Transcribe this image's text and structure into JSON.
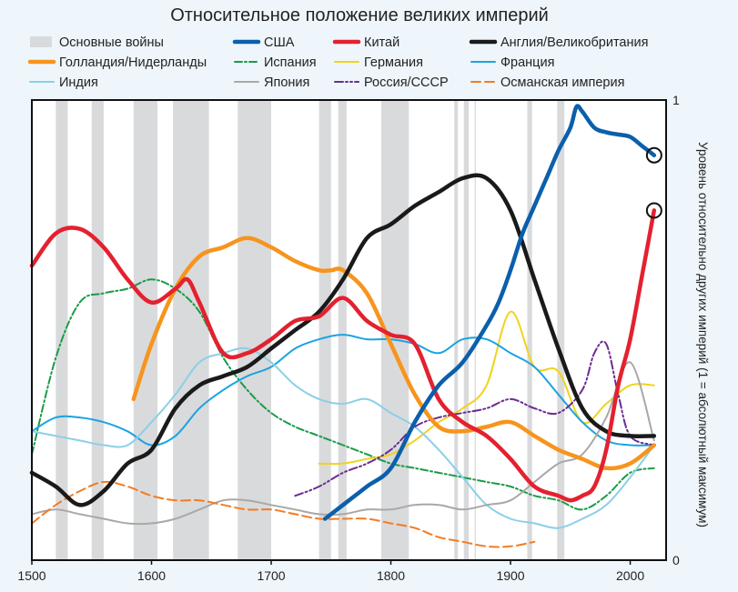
{
  "chart_data": {
    "type": "line",
    "title": "Относительное положение великих империй",
    "xlabel": "",
    "ylabel": "Уровень относительно других империй (1 = абсолютный максимум)",
    "xlim": [
      1500,
      2030
    ],
    "ylim": [
      0,
      1
    ],
    "x_ticks": [
      1500,
      1600,
      1700,
      1800,
      1900,
      2000
    ],
    "y_ticks": [
      0,
      1
    ],
    "legend": "top",
    "wars_label": "Основные войны",
    "wars_color": "#d9dadc",
    "major_wars": [
      [
        1520,
        1530
      ],
      [
        1550,
        1560
      ],
      [
        1585,
        1605
      ],
      [
        1618,
        1648
      ],
      [
        1672,
        1700
      ],
      [
        1740,
        1750
      ],
      [
        1756,
        1763
      ],
      [
        1792,
        1815
      ],
      [
        1853,
        1856
      ],
      [
        1861,
        1865
      ],
      [
        1870,
        1871
      ],
      [
        1914,
        1918
      ],
      [
        1939,
        1945
      ]
    ],
    "highlight_points": [
      {
        "series": "США",
        "x": 2020,
        "y": 0.88
      },
      {
        "series": "Китай",
        "x": 2020,
        "y": 0.76
      }
    ],
    "series": [
      {
        "name": "США",
        "color": "#0b5fab",
        "width": 4.5,
        "dash": "",
        "x": [
          1745,
          1760,
          1780,
          1800,
          1820,
          1840,
          1860,
          1880,
          1890,
          1900,
          1910,
          1920,
          1930,
          1940,
          1950,
          1955,
          1960,
          1970,
          1980,
          1990,
          2000,
          2010,
          2020
        ],
        "y": [
          0.09,
          0.12,
          0.16,
          0.2,
          0.3,
          0.38,
          0.43,
          0.51,
          0.56,
          0.63,
          0.71,
          0.77,
          0.83,
          0.89,
          0.94,
          0.985,
          0.975,
          0.94,
          0.93,
          0.925,
          0.92,
          0.9,
          0.88
        ]
      },
      {
        "name": "Китай",
        "color": "#e3212f",
        "width": 4.5,
        "dash": "",
        "x": [
          1500,
          1520,
          1540,
          1560,
          1580,
          1600,
          1620,
          1630,
          1640,
          1660,
          1680,
          1700,
          1720,
          1740,
          1760,
          1780,
          1800,
          1820,
          1840,
          1860,
          1880,
          1900,
          1920,
          1940,
          1950,
          1960,
          1970,
          1980,
          1990,
          2000,
          2010,
          2020
        ],
        "y": [
          0.64,
          0.71,
          0.72,
          0.68,
          0.61,
          0.56,
          0.59,
          0.61,
          0.56,
          0.45,
          0.45,
          0.48,
          0.52,
          0.53,
          0.57,
          0.52,
          0.49,
          0.47,
          0.35,
          0.3,
          0.27,
          0.22,
          0.16,
          0.14,
          0.13,
          0.14,
          0.16,
          0.24,
          0.38,
          0.48,
          0.62,
          0.76
        ]
      },
      {
        "name": "Англия/Великобритания",
        "color": "#1a1a1a",
        "width": 4.5,
        "dash": "",
        "x": [
          1500,
          1520,
          1540,
          1560,
          1580,
          1600,
          1620,
          1640,
          1660,
          1680,
          1700,
          1720,
          1740,
          1760,
          1780,
          1800,
          1820,
          1840,
          1860,
          1880,
          1900,
          1920,
          1940,
          1960,
          1980,
          2000,
          2020
        ],
        "y": [
          0.19,
          0.16,
          0.12,
          0.15,
          0.21,
          0.24,
          0.33,
          0.38,
          0.4,
          0.42,
          0.46,
          0.5,
          0.54,
          0.61,
          0.7,
          0.73,
          0.77,
          0.8,
          0.83,
          0.83,
          0.76,
          0.61,
          0.46,
          0.33,
          0.28,
          0.27,
          0.27
        ]
      },
      {
        "name": "Голландия/Нидерланды",
        "color": "#f7941d",
        "width": 4.5,
        "dash": "",
        "x": [
          1585,
          1600,
          1620,
          1640,
          1660,
          1680,
          1700,
          1720,
          1740,
          1750,
          1760,
          1780,
          1800,
          1820,
          1840,
          1860,
          1880,
          1900,
          1920,
          1940,
          1960,
          1980,
          2000,
          2020
        ],
        "y": [
          0.35,
          0.47,
          0.59,
          0.66,
          0.68,
          0.7,
          0.68,
          0.65,
          0.63,
          0.63,
          0.63,
          0.58,
          0.47,
          0.36,
          0.29,
          0.28,
          0.29,
          0.3,
          0.27,
          0.24,
          0.22,
          0.2,
          0.21,
          0.25
        ]
      },
      {
        "name": "Испания",
        "color": "#1a9b48",
        "width": 2,
        "dash": "8 3 2 3",
        "x": [
          1500,
          1520,
          1540,
          1560,
          1580,
          1600,
          1620,
          1640,
          1660,
          1680,
          1700,
          1720,
          1740,
          1760,
          1780,
          1800,
          1820,
          1840,
          1860,
          1880,
          1900,
          1920,
          1940,
          1960,
          1980,
          2000,
          2020
        ],
        "y": [
          0.23,
          0.44,
          0.56,
          0.58,
          0.59,
          0.61,
          0.59,
          0.54,
          0.44,
          0.37,
          0.32,
          0.29,
          0.27,
          0.25,
          0.23,
          0.21,
          0.2,
          0.19,
          0.18,
          0.17,
          0.16,
          0.14,
          0.13,
          0.11,
          0.14,
          0.19,
          0.2
        ]
      },
      {
        "name": "Германия",
        "color": "#f2d21b",
        "width": 2,
        "dash": "",
        "x": [
          1740,
          1760,
          1780,
          1800,
          1820,
          1840,
          1860,
          1880,
          1900,
          1920,
          1940,
          1960,
          1980,
          2000,
          2020
        ],
        "y": [
          0.21,
          0.21,
          0.22,
          0.23,
          0.26,
          0.3,
          0.33,
          0.38,
          0.54,
          0.42,
          0.41,
          0.3,
          0.34,
          0.38,
          0.38
        ]
      },
      {
        "name": "Франция",
        "color": "#1ba3e2",
        "width": 2,
        "dash": "",
        "x": [
          1500,
          1520,
          1540,
          1560,
          1580,
          1600,
          1620,
          1640,
          1660,
          1680,
          1700,
          1720,
          1740,
          1760,
          1780,
          1800,
          1820,
          1840,
          1860,
          1880,
          1900,
          1920,
          1940,
          1960,
          1980,
          2000,
          2020
        ],
        "y": [
          0.28,
          0.31,
          0.31,
          0.3,
          0.28,
          0.25,
          0.27,
          0.33,
          0.37,
          0.4,
          0.42,
          0.46,
          0.48,
          0.49,
          0.48,
          0.48,
          0.47,
          0.45,
          0.48,
          0.48,
          0.45,
          0.42,
          0.36,
          0.3,
          0.26,
          0.25,
          0.25
        ]
      },
      {
        "name": "Индия",
        "color": "#8bcfe8",
        "width": 2,
        "dash": "",
        "x": [
          1500,
          1520,
          1540,
          1560,
          1580,
          1600,
          1620,
          1640,
          1660,
          1680,
          1700,
          1720,
          1740,
          1760,
          1780,
          1800,
          1820,
          1840,
          1860,
          1880,
          1900,
          1920,
          1940,
          1960,
          1980,
          2000,
          2020
        ],
        "y": [
          0.28,
          0.27,
          0.26,
          0.25,
          0.25,
          0.3,
          0.36,
          0.43,
          0.45,
          0.46,
          0.43,
          0.38,
          0.35,
          0.34,
          0.35,
          0.32,
          0.29,
          0.24,
          0.18,
          0.12,
          0.09,
          0.08,
          0.07,
          0.09,
          0.12,
          0.18,
          0.25
        ]
      },
      {
        "name": "Япония",
        "color": "#a8a8a8",
        "width": 2,
        "dash": "",
        "x": [
          1500,
          1520,
          1540,
          1560,
          1580,
          1600,
          1620,
          1640,
          1660,
          1680,
          1700,
          1720,
          1740,
          1760,
          1780,
          1800,
          1820,
          1840,
          1860,
          1880,
          1900,
          1920,
          1940,
          1960,
          1980,
          2000,
          2020
        ],
        "y": [
          0.1,
          0.11,
          0.1,
          0.09,
          0.08,
          0.08,
          0.09,
          0.11,
          0.13,
          0.13,
          0.12,
          0.11,
          0.1,
          0.1,
          0.11,
          0.11,
          0.12,
          0.12,
          0.11,
          0.12,
          0.13,
          0.17,
          0.21,
          0.23,
          0.31,
          0.43,
          0.26
        ]
      },
      {
        "name": "Россия/СССР",
        "color": "#6c2c91",
        "width": 2,
        "dash": "9 3 2 3 2 3",
        "x": [
          1720,
          1740,
          1760,
          1780,
          1800,
          1820,
          1840,
          1860,
          1880,
          1900,
          1920,
          1940,
          1960,
          1970,
          1980,
          1990,
          2000,
          2020
        ],
        "y": [
          0.14,
          0.16,
          0.19,
          0.21,
          0.24,
          0.29,
          0.31,
          0.32,
          0.33,
          0.35,
          0.33,
          0.32,
          0.37,
          0.45,
          0.47,
          0.36,
          0.27,
          0.25
        ]
      },
      {
        "name": "Османская империя",
        "color": "#f47b20",
        "width": 2,
        "dash": "10 5",
        "x": [
          1500,
          1520,
          1540,
          1560,
          1580,
          1600,
          1620,
          1640,
          1660,
          1680,
          1700,
          1720,
          1740,
          1760,
          1780,
          1800,
          1820,
          1840,
          1860,
          1880,
          1900,
          1920
        ],
        "y": [
          0.08,
          0.12,
          0.15,
          0.17,
          0.16,
          0.14,
          0.13,
          0.13,
          0.12,
          0.11,
          0.11,
          0.1,
          0.09,
          0.09,
          0.09,
          0.08,
          0.07,
          0.05,
          0.04,
          0.03,
          0.03,
          0.04
        ]
      }
    ]
  }
}
